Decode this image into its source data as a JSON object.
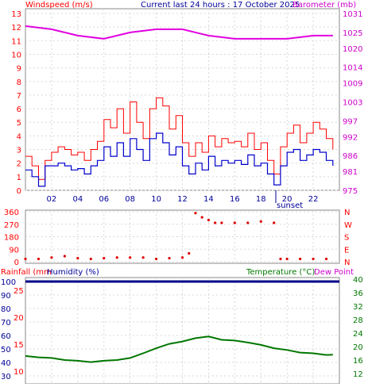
{
  "header": {
    "left_label": "Windspeed (m/s)",
    "center_label": "Current last 24 hours : 17 October 2025",
    "right_label": "Barometer (mb)"
  },
  "panel_mid": {
    "left_ticks": [
      "360",
      "270",
      "180",
      "90",
      "0"
    ],
    "right_ticks": [
      "N",
      "W",
      "S",
      "E",
      "N"
    ]
  },
  "panel_bottom": {
    "rainfall_label": "Rainfall (mm",
    "humidity_label": "Humidity (%)",
    "temperature_label": "Temperature (°C)",
    "dewpoint_label": "Dew Point",
    "rain_ticks": [
      "25",
      "20",
      "15",
      "10",
      "5"
    ],
    "humidity_ticks": [
      "100",
      "90",
      "80",
      "70",
      "60",
      "50",
      "40",
      "30"
    ],
    "temp_ticks": [
      "40",
      "36",
      "32",
      "28",
      "24",
      "20",
      "16",
      "12",
      "8"
    ]
  },
  "sunset_label": "sunset",
  "colors": {
    "gust": "#ff0000",
    "wind": "#0000cc",
    "barometer": "#e000e0",
    "direction": "#dd0000",
    "humidity": "#000088",
    "temperature": "#007700",
    "axis_red": "#ff0000",
    "axis_magenta": "#cc00cc",
    "axis_green": "#007700",
    "axis_blue": "#000099",
    "grid": "#d8d8d8"
  },
  "chart_data": [
    {
      "type": "line",
      "name": "wind-barometer",
      "x_ticks": [
        "02",
        "04",
        "06",
        "08",
        "10",
        "12",
        "14",
        "16",
        "18",
        "20",
        "22"
      ],
      "y_left_ticks": [
        "0",
        "1",
        "2",
        "3",
        "4",
        "5",
        "6",
        "7",
        "8",
        "9",
        "10",
        "11",
        "12",
        "13"
      ],
      "y_right_ticks": [
        "975",
        "981",
        "986",
        "992",
        "997",
        "1003",
        "1009",
        "1014",
        "1020",
        "1025",
        "1031"
      ],
      "ylim_left": [
        0,
        13
      ],
      "ylim_right": [
        975,
        1031
      ],
      "xlim": [
        0,
        24
      ],
      "series": [
        {
          "name": "gust",
          "x": [
            0,
            0.5,
            1,
            1.5,
            2,
            2.5,
            3,
            3.5,
            4,
            4.5,
            5,
            5.5,
            6,
            6.5,
            7,
            7.5,
            8,
            8.5,
            9,
            9.5,
            10,
            10.5,
            11,
            11.5,
            12,
            12.5,
            13,
            13.5,
            14,
            14.5,
            15,
            15.5,
            16,
            16.5,
            17,
            17.5,
            18,
            18.5,
            19,
            19.5,
            20,
            20.5,
            21,
            21.5,
            22,
            22.5,
            23,
            23.5
          ],
          "y": [
            2.5,
            1.8,
            0.8,
            2.2,
            2.8,
            3.2,
            3.0,
            2.6,
            2.8,
            2.2,
            3.0,
            3.6,
            5.2,
            4.6,
            6.0,
            4.2,
            6.5,
            5.0,
            3.8,
            6.0,
            6.8,
            6.2,
            4.5,
            5.5,
            3.5,
            2.5,
            3.5,
            2.8,
            4.0,
            3.2,
            3.8,
            3.5,
            3.6,
            3.2,
            4.2,
            3.0,
            3.5,
            2.2,
            1.2,
            3.2,
            4.2,
            4.8,
            3.5,
            4.2,
            5.0,
            4.5,
            3.8,
            3.0
          ]
        },
        {
          "name": "wind",
          "x": [
            0,
            0.5,
            1,
            1.5,
            2,
            2.5,
            3,
            3.5,
            4,
            4.5,
            5,
            5.5,
            6,
            6.5,
            7,
            7.5,
            8,
            8.5,
            9,
            9.5,
            10,
            10.5,
            11,
            11.5,
            12,
            12.5,
            13,
            13.5,
            14,
            14.5,
            15,
            15.5,
            16,
            16.5,
            17,
            17.5,
            18,
            18.5,
            19,
            19.5,
            20,
            20.5,
            21,
            21.5,
            22,
            22.5,
            23,
            23.5
          ],
          "y": [
            1.5,
            1.0,
            0.3,
            1.8,
            1.8,
            2.0,
            1.8,
            1.5,
            1.6,
            1.2,
            1.8,
            2.2,
            3.2,
            2.5,
            3.5,
            2.5,
            3.8,
            3.0,
            2.2,
            3.8,
            4.2,
            3.5,
            2.6,
            3.2,
            1.8,
            1.2,
            2.0,
            1.5,
            2.5,
            1.8,
            2.2,
            2.0,
            2.2,
            1.9,
            2.6,
            1.8,
            2.0,
            1.2,
            0.4,
            1.8,
            2.8,
            3.0,
            2.2,
            2.6,
            3.0,
            2.8,
            2.2,
            1.8
          ]
        },
        {
          "name": "barometer",
          "x": [
            0,
            2,
            4,
            6,
            8,
            10,
            12,
            14,
            16,
            18,
            20,
            22,
            23.5
          ],
          "y": [
            1027,
            1026,
            1024,
            1023,
            1025,
            1026,
            1026,
            1024,
            1023,
            1023,
            1023,
            1024,
            1024
          ]
        }
      ]
    },
    {
      "type": "scatter",
      "name": "wind-direction",
      "ylim": [
        0,
        360
      ],
      "x": [
        0,
        1,
        2,
        3,
        4,
        5,
        6,
        7,
        8,
        9,
        10,
        11,
        12,
        12.5,
        13,
        13.5,
        14,
        14.5,
        15,
        16,
        17,
        18,
        19,
        19.5,
        20,
        21,
        22,
        23
      ],
      "y": [
        20,
        20,
        30,
        40,
        25,
        20,
        25,
        30,
        30,
        30,
        20,
        25,
        30,
        60,
        350,
        320,
        300,
        280,
        280,
        280,
        280,
        290,
        280,
        20,
        20,
        20,
        20,
        20
      ]
    },
    {
      "type": "line",
      "name": "humidity-temperature",
      "ylim_left": [
        30,
        100
      ],
      "ylim_right": [
        8,
        40
      ],
      "series": [
        {
          "name": "humidity",
          "x": [
            0,
            24
          ],
          "y": [
            100,
            100
          ]
        },
        {
          "name": "temperature",
          "x": [
            0,
            1,
            2,
            3,
            4,
            5,
            6,
            7,
            8,
            9,
            10,
            11,
            12,
            13,
            14,
            15,
            16,
            17,
            18,
            19,
            20,
            21,
            22,
            23,
            23.5
          ],
          "y": [
            17.2,
            16.8,
            16.6,
            16.0,
            15.8,
            15.4,
            15.8,
            16.0,
            16.6,
            18.0,
            19.5,
            20.8,
            21.5,
            22.5,
            23.0,
            22.0,
            21.8,
            21.2,
            20.5,
            19.5,
            19.0,
            18.2,
            18.0,
            17.5,
            17.6
          ]
        }
      ]
    }
  ]
}
